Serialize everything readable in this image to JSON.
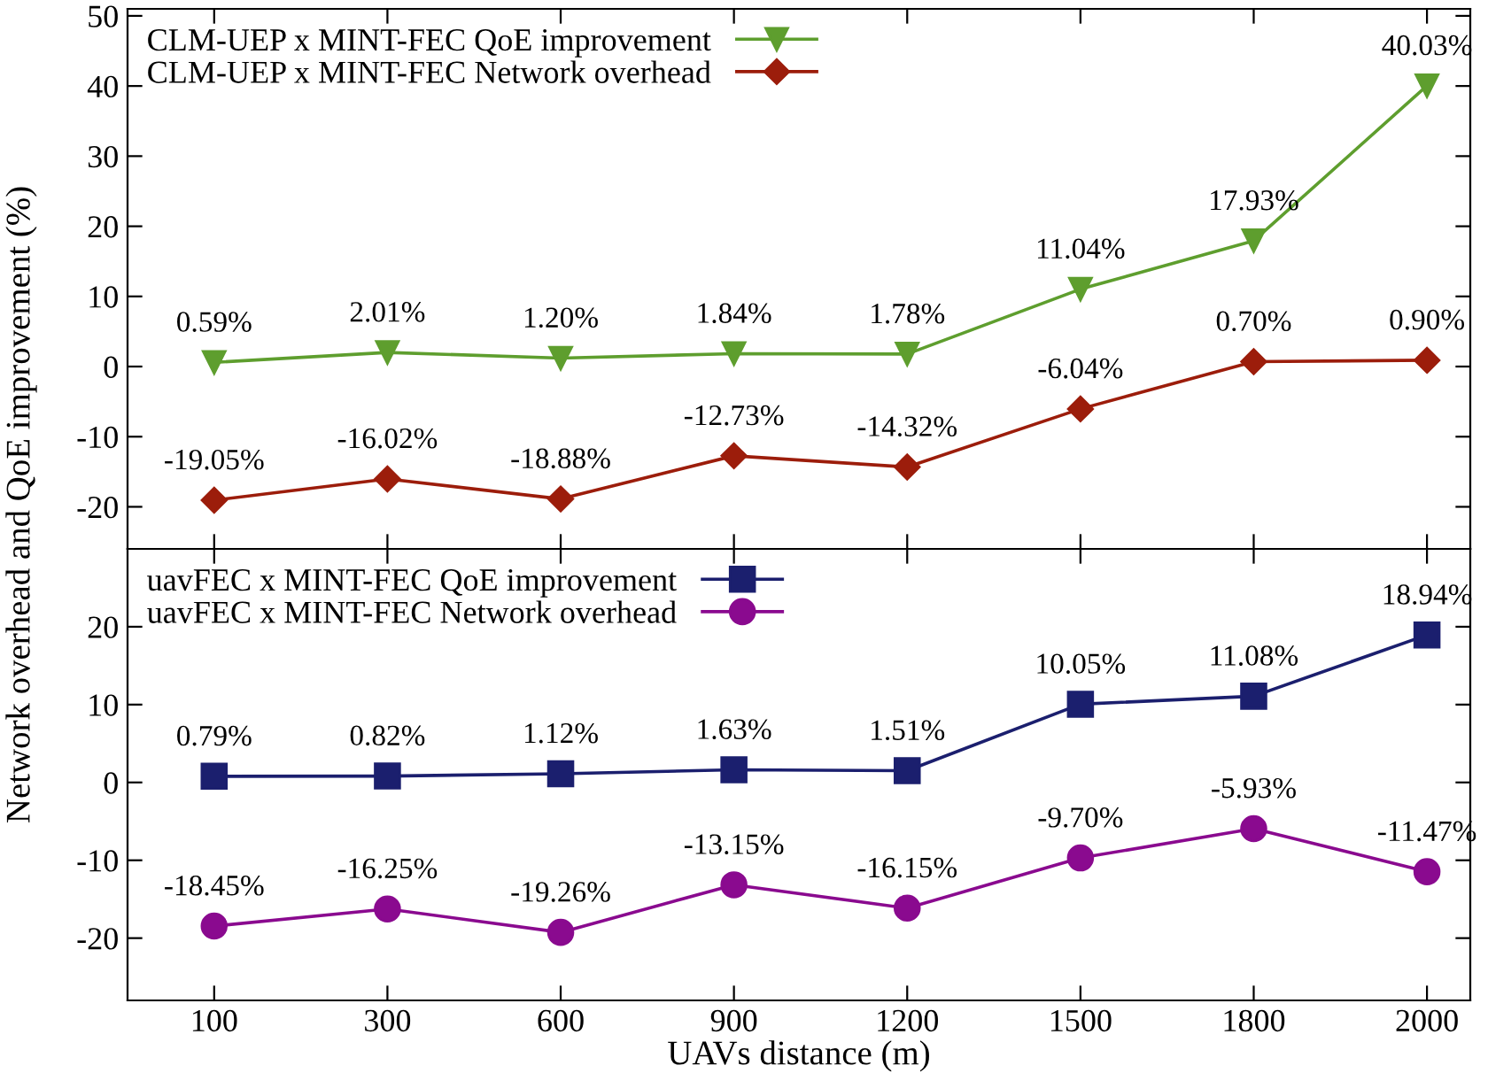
{
  "chart_data": [
    {
      "type": "line",
      "ylabel": "Network overhead and QoE improvement (%)",
      "categories": [
        "100",
        "300",
        "600",
        "900",
        "1200",
        "1500",
        "1800",
        "2000"
      ],
      "ylim": [
        -26,
        51
      ],
      "yticks": [
        -20,
        -10,
        0,
        10,
        20,
        30,
        40,
        50
      ],
      "tick_labels": "y",
      "legend": "top left",
      "grid": false,
      "series": [
        {
          "name": "CLM-UEP x MINT-FEC QoE improvement",
          "color": "#5e9e2e",
          "marker": "triangle",
          "values": [
            0.59,
            2.01,
            1.2,
            1.84,
            1.78,
            11.04,
            17.93,
            40.03
          ],
          "value_labels": [
            "0.59%",
            "2.01%",
            "1.20%",
            "1.84%",
            "1.78%",
            "11.04%",
            "17.93%",
            "40.03%"
          ]
        },
        {
          "name": "CLM-UEP x MINT-FEC Network overhead",
          "color": "#9c1d0b",
          "marker": "diamond",
          "values": [
            -19.05,
            -16.02,
            -18.88,
            -12.73,
            -14.32,
            -6.04,
            0.7,
            0.9
          ],
          "value_labels": [
            "-19.05%",
            "-16.02%",
            "-18.88%",
            "-12.73%",
            "-14.32%",
            "-6.04%",
            "0.70%",
            "0.90%"
          ]
        }
      ]
    },
    {
      "type": "line",
      "xlabel": "UAVs distance (m)",
      "categories": [
        "100",
        "300",
        "600",
        "900",
        "1200",
        "1500",
        "1800",
        "2000"
      ],
      "ylim": [
        -28,
        30
      ],
      "yticks": [
        -20,
        -10,
        0,
        10,
        20
      ],
      "legend": "top left",
      "grid": false,
      "series": [
        {
          "name": "uavFEC x MINT-FEC QoE improvement",
          "color": "#1b1f6e",
          "marker": "square",
          "values": [
            0.79,
            0.82,
            1.12,
            1.63,
            1.51,
            10.05,
            11.08,
            18.94
          ],
          "value_labels": [
            "0.79%",
            "0.82%",
            "1.12%",
            "1.63%",
            "1.51%",
            "10.05%",
            "11.08%",
            "18.94%"
          ]
        },
        {
          "name": "uavFEC x MINT-FEC Network overhead",
          "color": "#8a0a8f",
          "marker": "circle",
          "values": [
            -18.45,
            -16.25,
            -19.26,
            -13.15,
            -16.15,
            -9.7,
            -5.93,
            -11.47
          ],
          "value_labels": [
            "-18.45%",
            "-16.25%",
            "-19.26%",
            "-13.15%",
            "-16.15%",
            "-9.70%",
            "-5.93%",
            "-11.47%"
          ]
        }
      ]
    }
  ]
}
